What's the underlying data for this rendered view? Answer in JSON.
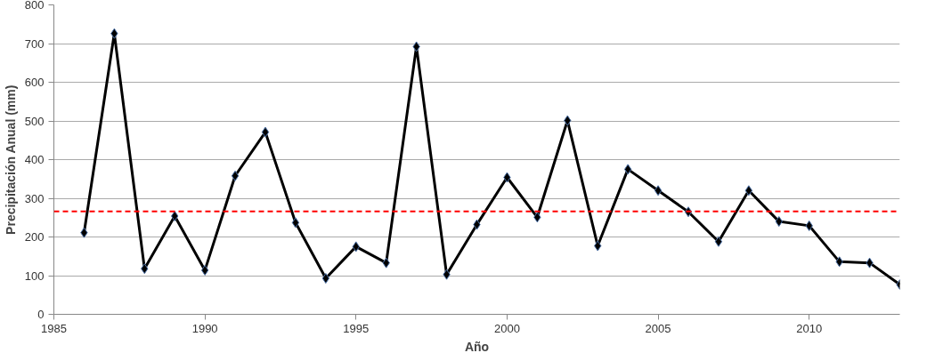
{
  "chart_data": {
    "type": "line",
    "xlabel": "Año",
    "ylabel": "Precipitación Anual (mm)",
    "x": [
      1986,
      1987,
      1988,
      1989,
      1990,
      1991,
      1992,
      1993,
      1994,
      1995,
      1996,
      1997,
      1998,
      1999,
      2000,
      2001,
      2002,
      2003,
      2004,
      2005,
      2006,
      2007,
      2008,
      2009,
      2010,
      2011,
      2012,
      2013
    ],
    "series": [
      {
        "color": "#000000",
        "values": [
          211,
          726,
          118,
          254,
          114,
          358,
          471,
          237,
          93,
          175,
          133,
          692,
          103,
          232,
          354,
          251,
          501,
          177,
          375,
          320,
          265,
          188,
          320,
          240,
          229,
          136,
          133,
          77
        ]
      }
    ],
    "xlim": [
      1985,
      2013
    ],
    "xticks": [
      1985,
      1990,
      1995,
      2000,
      2005,
      2010
    ],
    "ylim": [
      0,
      800
    ],
    "yticks": [
      0,
      100,
      200,
      300,
      400,
      500,
      600,
      700,
      800
    ],
    "ref_lines": [
      {
        "axis": "y",
        "value": 266,
        "color": "#ff0000",
        "line_style": "dashed"
      }
    ],
    "grid": "y",
    "marker": "diamond",
    "line_style": "solid"
  }
}
